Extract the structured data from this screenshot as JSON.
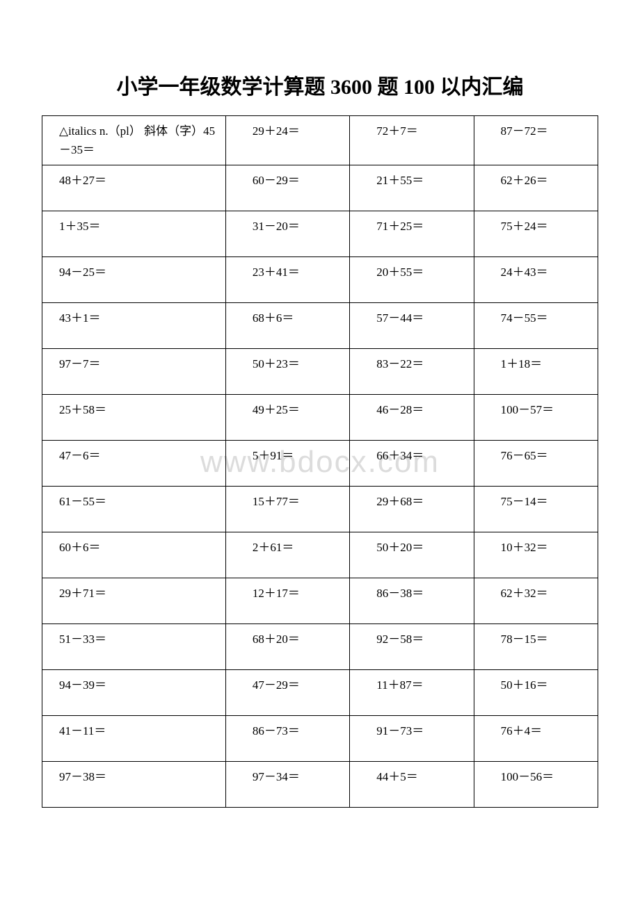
{
  "title": "小学一年级数学计算题 3600 题 100 以内汇编",
  "watermark": "www.bdocx.com",
  "table": {
    "rows": [
      [
        "△italics n.（pl） 斜体（字）45－35＝",
        "29＋24＝",
        "72＋7＝",
        "87－72＝"
      ],
      [
        "48＋27＝",
        "60－29＝",
        "21＋55＝",
        "62＋26＝"
      ],
      [
        "1＋35＝",
        "31－20＝",
        "71＋25＝",
        "75＋24＝"
      ],
      [
        "94－25＝",
        "23＋41＝",
        "20＋55＝",
        "24＋43＝"
      ],
      [
        "43＋1＝",
        "68＋6＝",
        "57－44＝",
        "74－55＝"
      ],
      [
        "97－7＝",
        "50＋23＝",
        "83－22＝",
        "1＋18＝"
      ],
      [
        "25＋58＝",
        "49＋25＝",
        "46－28＝",
        "100－57＝"
      ],
      [
        "47－6＝",
        "5＋91＝",
        "66＋34＝",
        "76－65＝"
      ],
      [
        "61－55＝",
        "15＋77＝",
        "29＋68＝",
        "75－14＝"
      ],
      [
        "60＋6＝",
        "2＋61＝",
        "50＋20＝",
        "10＋32＝"
      ],
      [
        "29＋71＝",
        "12＋17＝",
        "86－38＝",
        "62＋32＝"
      ],
      [
        "51－33＝",
        "68＋20＝",
        "92－58＝",
        "78－15＝"
      ],
      [
        "94－39＝",
        "47－29＝",
        "11＋87＝",
        "50＋16＝"
      ],
      [
        "41－11＝",
        "86－73＝",
        "91－73＝",
        "76＋4＝"
      ],
      [
        "97－38＝",
        "97－34＝",
        "44＋5＝",
        "100－56＝"
      ]
    ]
  }
}
